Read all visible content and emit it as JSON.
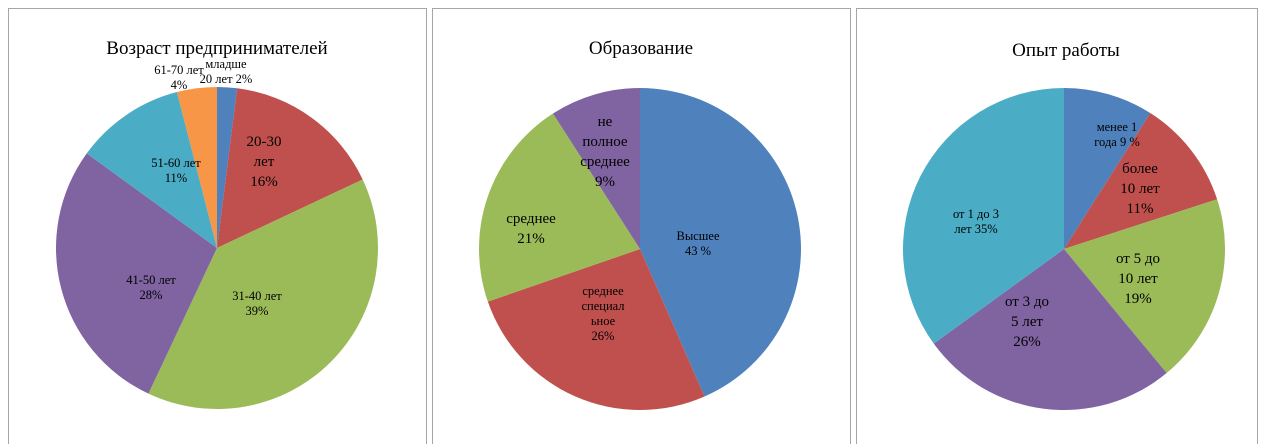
{
  "chart_data": [
    {
      "type": "pie",
      "title": "Возраст предпринимателей",
      "slices": [
        {
          "lines": [
            "младше",
            "20 лет 2%"
          ],
          "value": 2,
          "color": "#4f81bd"
        },
        {
          "lines": [
            "20-30",
            "лет",
            "16%"
          ],
          "value": 16,
          "color": "#c0504d"
        },
        {
          "lines": [
            "31-40 лет",
            "39%"
          ],
          "value": 39,
          "color": "#9bbb59"
        },
        {
          "lines": [
            "41-50 лет",
            "28%"
          ],
          "value": 28,
          "color": "#8064a2"
        },
        {
          "lines": [
            "51-60 лет",
            "11%"
          ],
          "value": 11,
          "color": "#4bacc6"
        },
        {
          "lines": [
            "61-70 лет",
            "4%"
          ],
          "value": 4,
          "color": "#f79646"
        }
      ]
    },
    {
      "type": "pie",
      "title": "Образование",
      "slices": [
        {
          "lines": [
            "Высшее",
            "43 %"
          ],
          "value": 43,
          "color": "#4f81bd"
        },
        {
          "lines": [
            "среднее",
            "специал",
            "ьное",
            "26%"
          ],
          "value": 26,
          "color": "#c0504d"
        },
        {
          "lines": [
            "среднее",
            "21%"
          ],
          "value": 21,
          "color": "#9bbb59"
        },
        {
          "lines": [
            "не",
            "полное",
            "среднее",
            "9%"
          ],
          "value": 9,
          "color": "#8064a2"
        }
      ]
    },
    {
      "type": "pie",
      "title": "Опыт работы",
      "slices": [
        {
          "lines": [
            "менее 1",
            "года 9 %"
          ],
          "value": 9,
          "color": "#4f81bd"
        },
        {
          "lines": [
            "более",
            "10 лет",
            "11%"
          ],
          "value": 11,
          "color": "#c0504d"
        },
        {
          "lines": [
            "от 5 до",
            "10 лет",
            "19%"
          ],
          "value": 19,
          "color": "#9bbb59"
        },
        {
          "lines": [
            "от 3 до",
            "5 лет",
            "26%"
          ],
          "value": 26,
          "color": "#8064a2"
        },
        {
          "lines": [
            "от 1 до 3",
            "лет 35%"
          ],
          "value": 35,
          "color": "#4bacc6"
        }
      ]
    }
  ]
}
